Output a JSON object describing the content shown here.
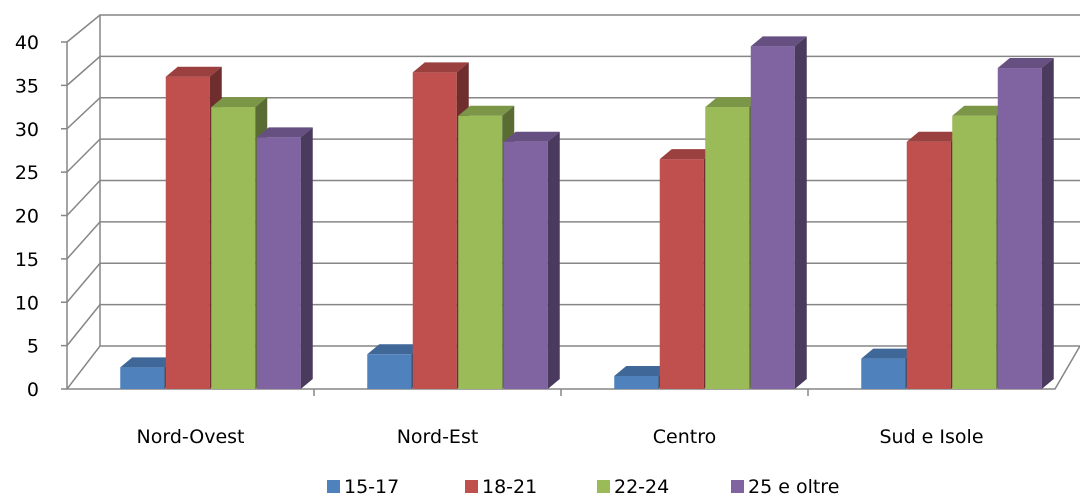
{
  "chart_data": {
    "type": "bar",
    "style": "3d-clustered-column",
    "categories": [
      "Nord-Ovest",
      "Nord-Est",
      "Centro",
      "Sud e Isole"
    ],
    "series": [
      {
        "name": "15-17",
        "values": [
          2.5,
          4,
          1.5,
          3.5
        ],
        "color": "#4F81BD"
      },
      {
        "name": "18-21",
        "values": [
          36,
          36.5,
          26.5,
          28.5
        ],
        "color": "#C0504D"
      },
      {
        "name": "22-24",
        "values": [
          32.5,
          31.5,
          32.5,
          31.5
        ],
        "color": "#9BBB59"
      },
      {
        "name": "25 e oltre",
        "values": [
          29,
          28.5,
          39.5,
          37
        ],
        "color": "#8064A2"
      }
    ],
    "title": "",
    "xlabel": "",
    "ylabel": "",
    "ylim": [
      0,
      40
    ],
    "yticks": [
      "0",
      "5",
      "10",
      "15",
      "20",
      "25",
      "30",
      "35",
      "40"
    ],
    "grid": true,
    "legend": "bottom"
  }
}
